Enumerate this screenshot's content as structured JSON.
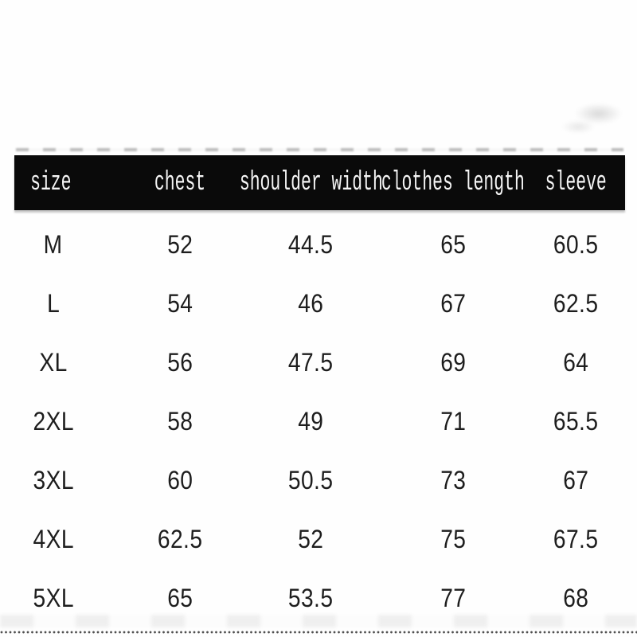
{
  "page": {
    "background_color": "#fefefe",
    "header_bg_color": "#0a0a0a",
    "header_text_color": "#f5f5f5",
    "body_text_color": "#1d1d1d"
  },
  "size_chart": {
    "headers": [
      "size",
      "chest",
      "shoulder width",
      "clothes length",
      "sleeve"
    ],
    "rows": [
      [
        "M",
        "52",
        "44.5",
        "65",
        "60.5"
      ],
      [
        "L",
        "54",
        "46",
        "67",
        "62.5"
      ],
      [
        "XL",
        "56",
        "47.5",
        "69",
        "64"
      ],
      [
        "2XL",
        "58",
        "49",
        "71",
        "65.5"
      ],
      [
        "3XL",
        "60",
        "50.5",
        "73",
        "67"
      ],
      [
        "4XL",
        "62.5",
        "52",
        "75",
        "67.5"
      ],
      [
        "5XL",
        "65",
        "53.5",
        "77",
        "68"
      ]
    ]
  },
  "chart_data": {
    "type": "table",
    "title": "",
    "columns": [
      "size",
      "chest",
      "shoulder width",
      "clothes length",
      "sleeve"
    ],
    "categories": [
      "M",
      "L",
      "XL",
      "2XL",
      "3XL",
      "4XL",
      "5XL"
    ],
    "series": [
      {
        "name": "chest",
        "values": [
          52,
          54,
          56,
          58,
          60,
          62.5,
          65
        ]
      },
      {
        "name": "shoulder width",
        "values": [
          44.5,
          46,
          47.5,
          49,
          50.5,
          52,
          53.5
        ]
      },
      {
        "name": "clothes length",
        "values": [
          65,
          67,
          69,
          71,
          73,
          75,
          77
        ]
      },
      {
        "name": "sleeve",
        "values": [
          60.5,
          62.5,
          64,
          65.5,
          67,
          67.5,
          68
        ]
      }
    ]
  }
}
